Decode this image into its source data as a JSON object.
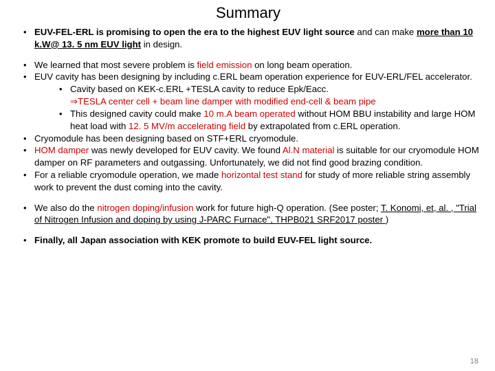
{
  "title": "Summary",
  "block1": {
    "line1a": "EUV-FEL-ERL is promising to open the era to the highest EUV light source",
    "line1b": " and can make ",
    "line1c": "more than 10 k.W@",
    "line1d": " 13. 5 nm EUV light",
    "line1e": " in design."
  },
  "block2": {
    "l1a": "We learned that most severe problem is ",
    "l1b": "field emission",
    "l1c": " on long beam operation.",
    "l2": "EUV cavity has been designing by including c.ERL beam operation experience for EUV-ERL/FEL accelerator.",
    "s1": "Cavity based on KEK-c.ERL +TESLA cavity to reduce Epk/Eacc.",
    "s1x": "⇒TESLA center cell + beam line damper with modified end-cell & beam pipe",
    "s2a": "This designed cavity could make ",
    "s2b": "10 m.A beam operated",
    "s2c": " without HOM BBU instability and large HOM heat load with ",
    "s2d": "12. 5 MV/m accelerating field",
    "s2e": " by extrapolated from c.ERL operation.",
    "l3": "Cryomodule has been designing based on STF+ERL cryomodule.",
    "l4a": "HOM damper",
    "l4b": " was newly developed for EUV cavity. We found ",
    "l4c": "Al.N material",
    "l4d": " is suitable for our cryomodule HOM damper on RF parameters and outgassing. Unfortunately, we did not find good brazing condition.",
    "l5a": "For a reliable cryomodule operation, we made ",
    "l5b": "horizontal test stand",
    "l5c": " for study of more reliable string assembly work to prevent the dust coming into the cavity."
  },
  "block3": {
    "a": "We also do the ",
    "b": "nitrogen doping/infusion",
    "c": " work for future high-Q operation. (See poster; ",
    "d": "T. Konomi, et, al. , \"Trial of Nitrogen Infusion and doping by using J-PARC Furnace\", THPB021 SRF2017 poster ",
    "e": ")"
  },
  "block4": {
    "a": "Finally, all Japan association with KEK promote to build EUV-FEL light source."
  },
  "pagenum": "18"
}
